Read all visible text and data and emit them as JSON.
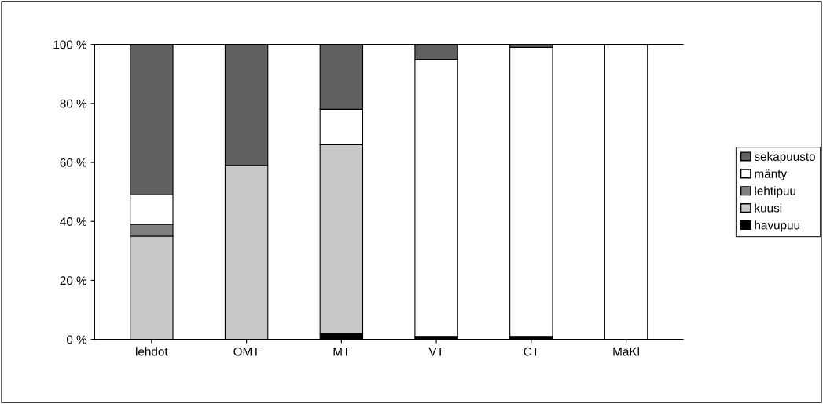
{
  "chart_data": {
    "type": "bar",
    "stacked": true,
    "categories": [
      "lehdot",
      "OMT",
      "MT",
      "VT",
      "CT",
      "MäKl"
    ],
    "series": [
      {
        "name": "havupuu",
        "color": "#000000",
        "values": [
          0,
          0,
          2,
          1,
          1,
          0
        ]
      },
      {
        "name": "kuusi",
        "color": "#c8c8c8",
        "values": [
          35,
          59,
          64,
          0,
          0,
          0
        ]
      },
      {
        "name": "lehtipuu",
        "color": "#808080",
        "values": [
          4,
          0,
          0,
          0,
          0,
          0
        ]
      },
      {
        "name": "mänty",
        "color": "#ffffff",
        "values": [
          10,
          0,
          12,
          94,
          98,
          100
        ]
      },
      {
        "name": "sekapuusto",
        "color": "#606060",
        "values": [
          51,
          41,
          22,
          5,
          1,
          0
        ]
      }
    ],
    "ylim": [
      0,
      100
    ],
    "yticks": [
      {
        "value": 0,
        "label": "0 %"
      },
      {
        "value": 20,
        "label": "20 %"
      },
      {
        "value": 40,
        "label": "40 %"
      },
      {
        "value": 60,
        "label": "60 %"
      },
      {
        "value": 80,
        "label": "80 %"
      },
      {
        "value": 100,
        "label": "100 %"
      }
    ],
    "legend": "right",
    "grid": false
  }
}
